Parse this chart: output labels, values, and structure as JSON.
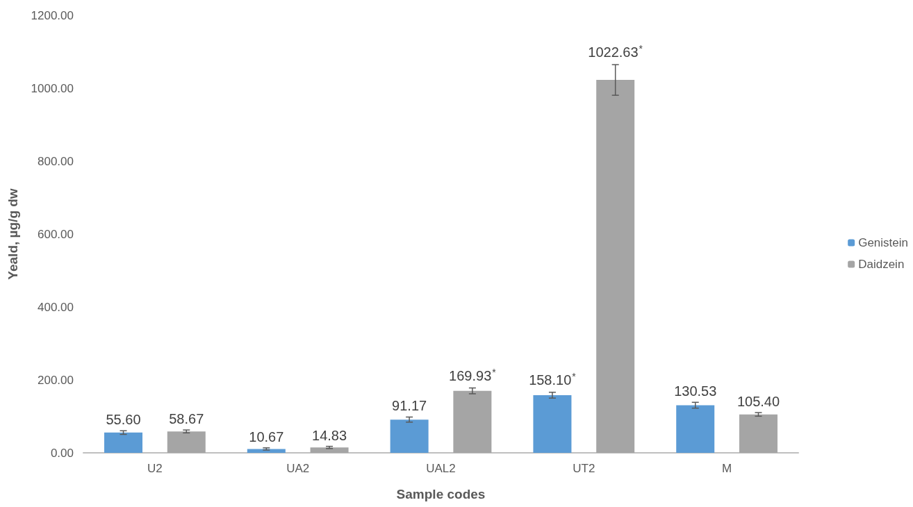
{
  "chart_data": {
    "type": "bar",
    "xlabel": "Sample codes",
    "ylabel": "Yeald, µg/g dw",
    "categories": [
      "U2",
      "UA2",
      "UAL2",
      "UT2",
      "M"
    ],
    "series": [
      {
        "name": "Genistein",
        "color": "#5b9bd5",
        "values": [
          55.6,
          10.67,
          91.17,
          158.1,
          130.53
        ],
        "errors": [
          5,
          3,
          7,
          8,
          8
        ],
        "value_labels": [
          "55.60",
          "10.67",
          "91.17",
          "158.10$^{*}$",
          "130.53"
        ]
      },
      {
        "name": "Daidzein",
        "color": "#a5a5a5",
        "values": [
          58.67,
          14.83,
          169.93,
          1022.63,
          105.4
        ],
        "errors": [
          4,
          3,
          8,
          42,
          5
        ],
        "value_labels": [
          "58.67",
          "14.83",
          "169.93$^{*}$",
          "1022.63$^{*}$",
          "105.40"
        ]
      }
    ],
    "ylim": [
      0,
      1200
    ],
    "yticks": [
      {
        "value": 0,
        "label": "0.00"
      },
      {
        "value": 200,
        "label": "200.00"
      },
      {
        "value": 400,
        "label": "400.00"
      },
      {
        "value": 600,
        "label": "600.00"
      },
      {
        "value": 800,
        "label": "800.00"
      },
      {
        "value": 1000,
        "label": "1000.00"
      },
      {
        "value": 1200,
        "label": "1200.00"
      }
    ],
    "grid": false,
    "legend": "right"
  }
}
